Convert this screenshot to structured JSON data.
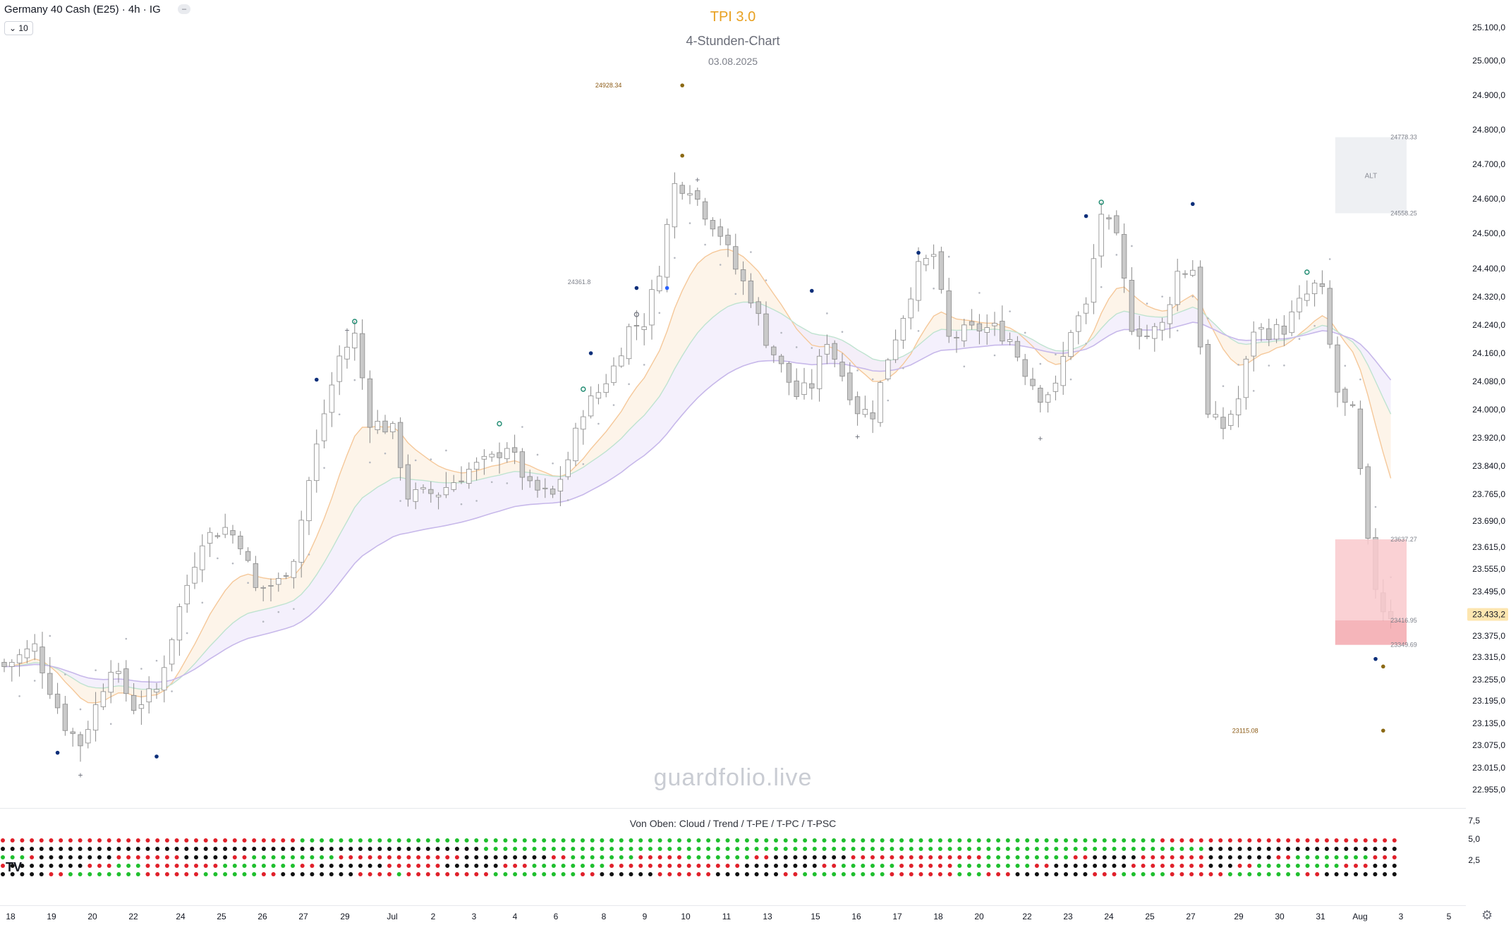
{
  "header": {
    "symbol": "Germany 40 Cash (E25) · 4h · IG",
    "collapse_icon": "minus",
    "indicator_count": "10"
  },
  "titles": {
    "name": "TPI 3.0",
    "chart_kind": "4-Stunden-Chart",
    "date": "03.08.2025"
  },
  "watermark": "guardfolio.live",
  "colors": {
    "up_candle": "#ffffff",
    "down_candle": "#c9c9c9",
    "wick": "#8a8a8a",
    "title": "#e8a020",
    "alt_box": "#eef0f3",
    "zone_light": "#f9c9cd",
    "zone_dark": "#f3a8ae",
    "cloud_orange": "#f5c89a",
    "cloud_green": "#bfe3d0",
    "cloud_purple": "#c7b8ea",
    "marker_navy": "#0d2f7a",
    "marker_blue": "#2962ff",
    "marker_teal": "#1d8a70",
    "marker_brown": "#8b6914",
    "dot_red": "#e0202a",
    "dot_green": "#1fbf2e",
    "dot_black": "#111111",
    "last_price_bg": "#fde6b0"
  },
  "chart_data": {
    "type": "candlestick",
    "title": "TPI 3.0",
    "subtitle": "4-Stunden-Chart",
    "date": "03.08.2025",
    "interval": "4h",
    "y_ticks": [
      {
        "v": 25100,
        "label": "25.100,0"
      },
      {
        "v": 25000,
        "label": "25.000,0"
      },
      {
        "v": 24900,
        "label": "24.900,0"
      },
      {
        "v": 24800,
        "label": "24.800,0"
      },
      {
        "v": 24700,
        "label": "24.700,0"
      },
      {
        "v": 24600,
        "label": "24.600,0"
      },
      {
        "v": 24500,
        "label": "24.500,0"
      },
      {
        "v": 24400,
        "label": "24.400,0"
      },
      {
        "v": 24320,
        "label": "24.320,0"
      },
      {
        "v": 24240,
        "label": "24.240,0"
      },
      {
        "v": 24160,
        "label": "24.160,0"
      },
      {
        "v": 24080,
        "label": "24.080,0"
      },
      {
        "v": 24000,
        "label": "24.000,0"
      },
      {
        "v": 23920,
        "label": "23.920,0"
      },
      {
        "v": 23840,
        "label": "23.840,0"
      },
      {
        "v": 23765,
        "label": "23.765,0"
      },
      {
        "v": 23690,
        "label": "23.690,0"
      },
      {
        "v": 23615,
        "label": "23.615,0"
      },
      {
        "v": 23555,
        "label": "23.555,0"
      },
      {
        "v": 23495,
        "label": "23.495,0"
      },
      {
        "v": 23375,
        "label": "23.375,0"
      },
      {
        "v": 23315,
        "label": "23.315,0"
      },
      {
        "v": 23255,
        "label": "23.255,0"
      },
      {
        "v": 23195,
        "label": "23.195,0"
      },
      {
        "v": 23135,
        "label": "23.135,0"
      },
      {
        "v": 23075,
        "label": "23.075,0"
      },
      {
        "v": 23015,
        "label": "23.015,0"
      },
      {
        "v": 22955,
        "label": "22.955,0"
      }
    ],
    "last_price": {
      "v": 23433.2,
      "label": "23.433,2"
    },
    "x_ticks": [
      "18",
      "19",
      "20",
      "22",
      "24",
      "25",
      "26",
      "27",
      "29",
      "Jul",
      "2",
      "3",
      "4",
      "6",
      "8",
      "9",
      "10",
      "11",
      "13",
      "15",
      "16",
      "17",
      "18",
      "20",
      "22",
      "23",
      "24",
      "25",
      "27",
      "29",
      "30",
      "31",
      "Aug",
      "3",
      "5"
    ],
    "price_labels": [
      {
        "v": 24928.34,
        "text": "24928.34",
        "bar": 88
      },
      {
        "v": 24361.8,
        "text": "24361.8",
        "bar": 76
      },
      {
        "v": 24778.33,
        "text": "24778.33",
        "bar": 184
      },
      {
        "v": 24558.25,
        "text": "24558.25",
        "bar": 184
      },
      {
        "v": 23637.27,
        "text": "23637.27",
        "bar": 184
      },
      {
        "v": 23416.95,
        "text": "23416.95",
        "bar": 184
      },
      {
        "v": 23349.69,
        "text": "23349.69",
        "bar": 184
      },
      {
        "v": 23115.08,
        "text": "23115.08",
        "bar": 172
      }
    ],
    "alt_box": {
      "top": 24778.33,
      "bottom": 24558.25,
      "from_bar": 176,
      "to_bar": 185,
      "label": "ALT"
    },
    "zone": {
      "top": 23637.27,
      "mid": 23416.95,
      "bottom": 23349.69,
      "from_bar": 176,
      "to_bar": 185
    },
    "markers": [
      {
        "bar": 7,
        "v": 23055,
        "type": "dot",
        "color": "navy"
      },
      {
        "bar": 10,
        "v": 22995,
        "type": "plus"
      },
      {
        "bar": 20,
        "v": 23045,
        "type": "dot",
        "color": "navy"
      },
      {
        "bar": 41,
        "v": 24085,
        "type": "dot",
        "color": "navy"
      },
      {
        "bar": 45,
        "v": 24225,
        "type": "plus"
      },
      {
        "bar": 46,
        "v": 24250,
        "type": "ring",
        "color": "teal"
      },
      {
        "bar": 65,
        "v": 23960,
        "type": "ring",
        "color": "teal"
      },
      {
        "bar": 76,
        "v": 24058,
        "type": "ring",
        "color": "teal"
      },
      {
        "bar": 77,
        "v": 24160,
        "type": "dot",
        "color": "navy"
      },
      {
        "bar": 83,
        "v": 24345,
        "type": "dot",
        "color": "navy"
      },
      {
        "bar": 83,
        "v": 24270,
        "type": "ring",
        "color": "gray"
      },
      {
        "bar": 87,
        "v": 24345,
        "type": "dot",
        "color": "blue"
      },
      {
        "bar": 89,
        "v": 24928.34,
        "type": "dot",
        "color": "brown"
      },
      {
        "bar": 89,
        "v": 24725,
        "type": "dot",
        "color": "brown"
      },
      {
        "bar": 91,
        "v": 24655,
        "type": "plus"
      },
      {
        "bar": 106,
        "v": 24337,
        "type": "dot",
        "color": "navy"
      },
      {
        "bar": 112,
        "v": 23923,
        "type": "plus"
      },
      {
        "bar": 120,
        "v": 24445,
        "type": "dot",
        "color": "navy"
      },
      {
        "bar": 136,
        "v": 23918,
        "type": "plus"
      },
      {
        "bar": 142,
        "v": 24550,
        "type": "dot",
        "color": "navy"
      },
      {
        "bar": 144,
        "v": 24590,
        "type": "ring",
        "color": "teal"
      },
      {
        "bar": 156,
        "v": 24585,
        "type": "dot",
        "color": "navy"
      },
      {
        "bar": 171,
        "v": 24390,
        "type": "ring",
        "color": "teal"
      },
      {
        "bar": 180,
        "v": 23310,
        "type": "dot",
        "color": "navy"
      },
      {
        "bar": 181,
        "v": 23290,
        "type": "dot",
        "color": "brown"
      },
      {
        "bar": 181,
        "v": 23115.08,
        "type": "dot",
        "color": "brown"
      }
    ],
    "oscillator": {
      "label": "Von Oben: Cloud / Trend / T-PE / T-PC / T-PSC",
      "y_ticks": [
        {
          "v": 7.5,
          "label": "7,5"
        },
        {
          "v": 5.0,
          "label": "5,0"
        },
        {
          "v": 2.5,
          "label": "2,5"
        }
      ],
      "rows": [
        "Cloud",
        "Trend",
        "T-PE",
        "T-PC",
        "T-PSC"
      ],
      "dot_count": 145
    }
  },
  "tv_logo": "TV",
  "settings_icon": "gear"
}
